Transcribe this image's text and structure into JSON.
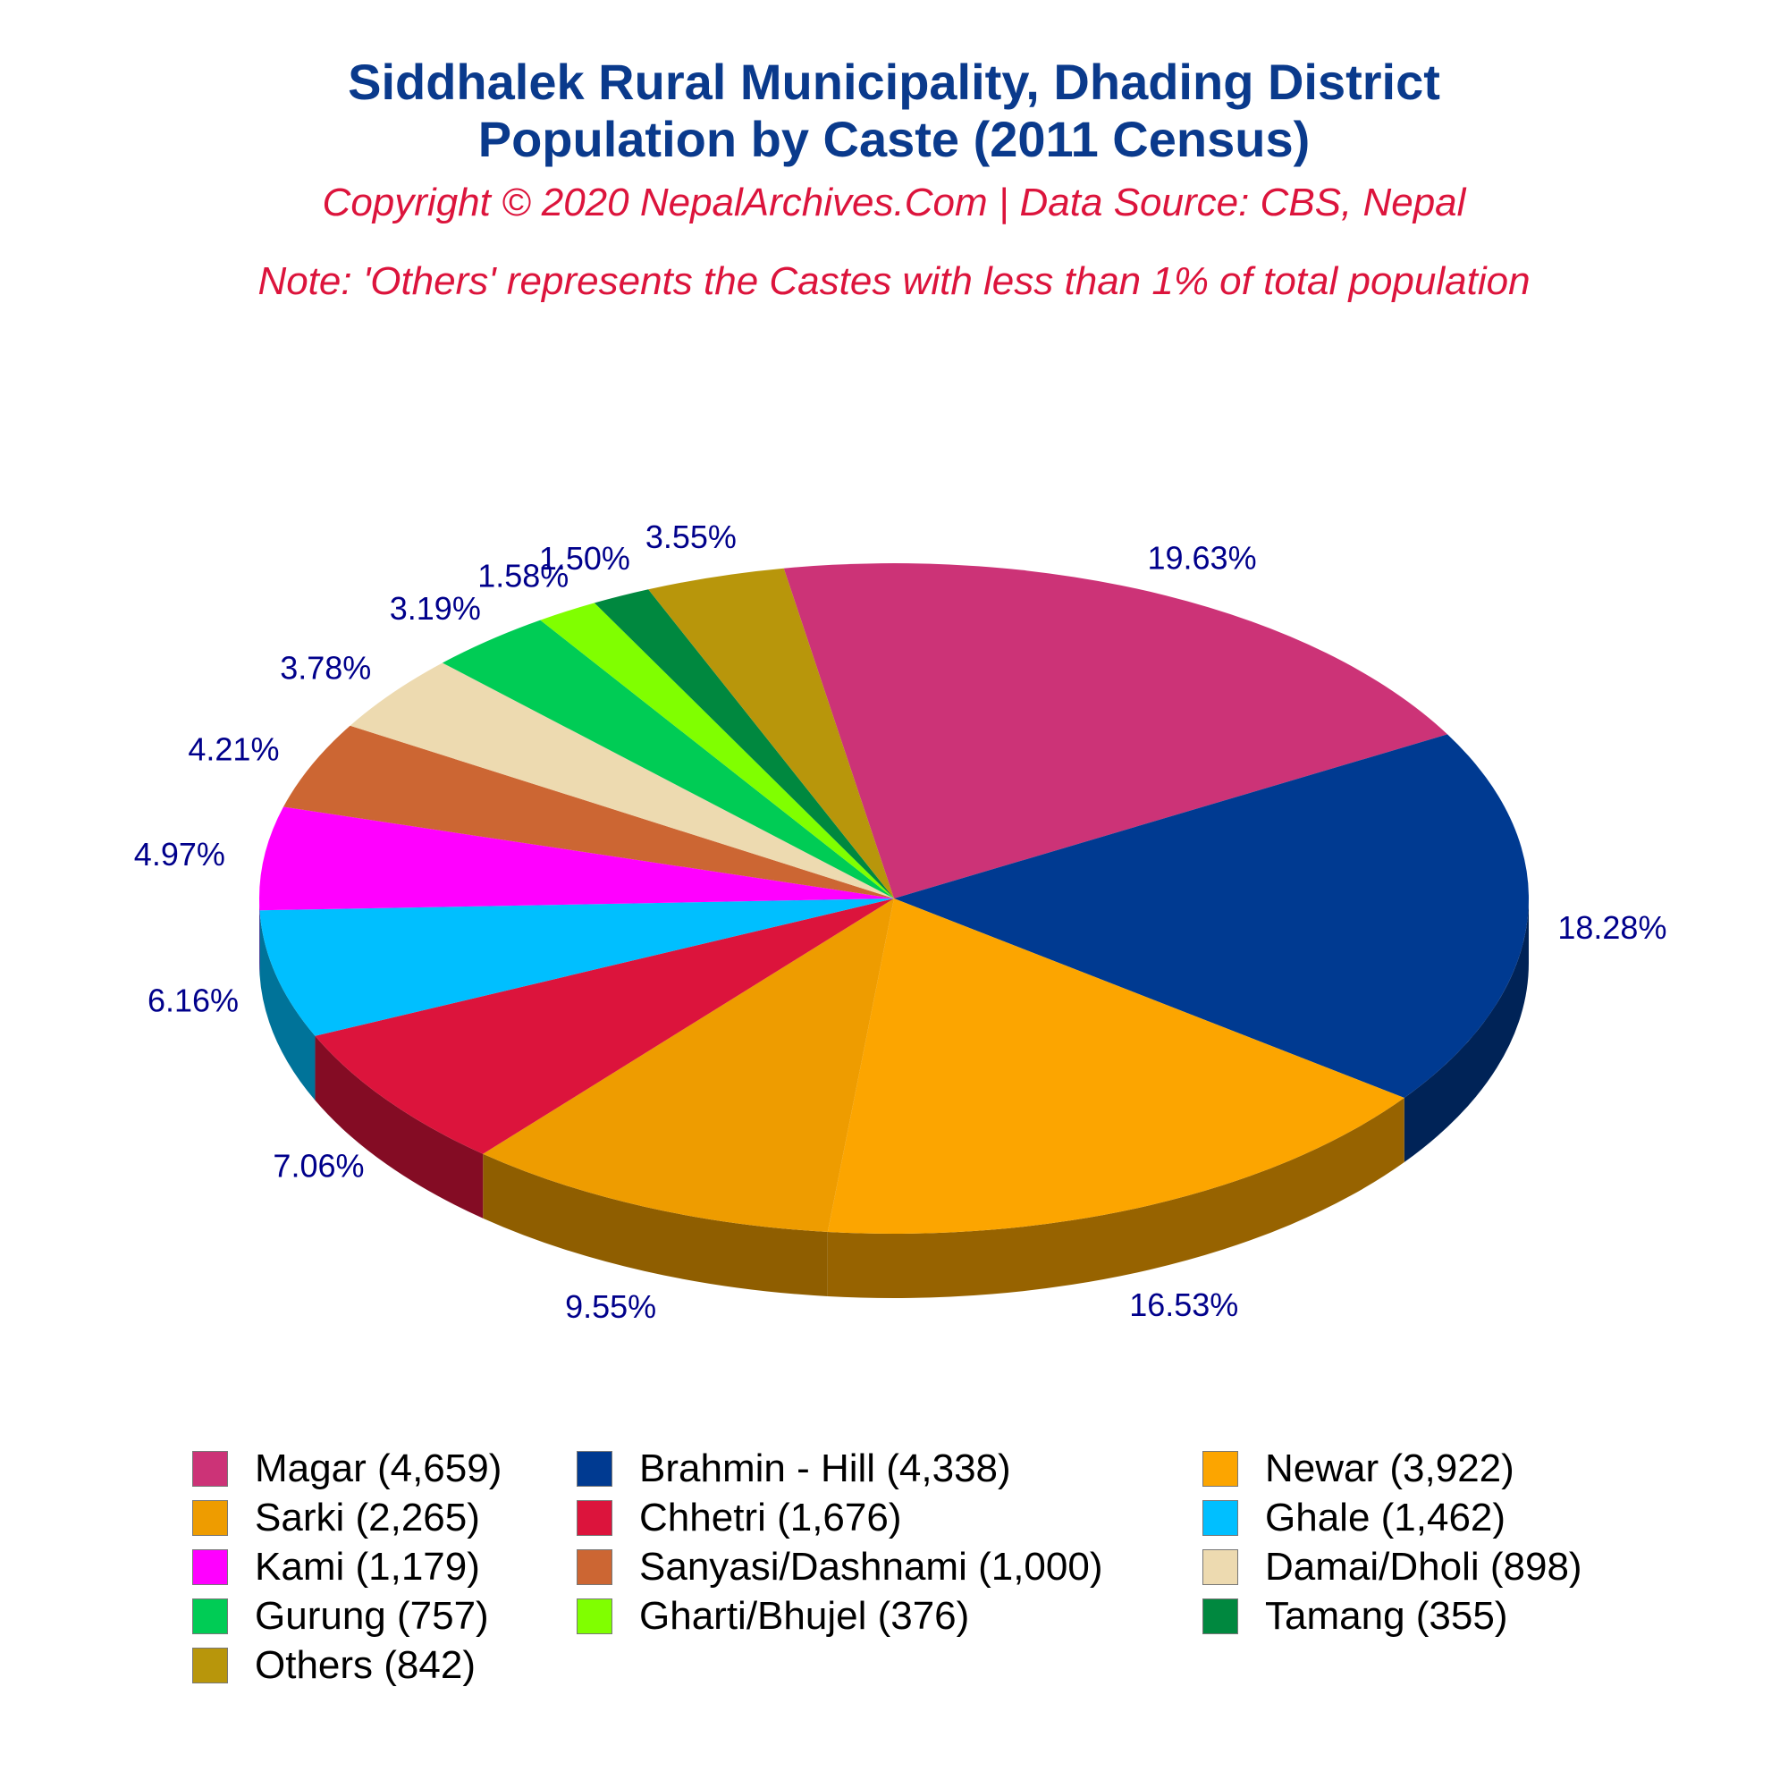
{
  "titles": {
    "line1": "Siddhalek Rural Municipality, Dhading District",
    "line2": "Population by Caste (2011 Census)",
    "copyright": "Copyright © 2020 NepalArchives.Com | Data Source: CBS, Nepal",
    "note": "Note: 'Others' represents the Castes with less than 1% of total population"
  },
  "chart_data": {
    "type": "pie",
    "style": "3d",
    "title": "Siddhalek Rural Municipality, Dhading District Population by Caste (2011 Census)",
    "legend_position": "bottom",
    "slices": [
      {
        "label": "Magar (4,659)",
        "value": 4659,
        "percent": "19.63%",
        "color": "#cc3377"
      },
      {
        "label": "Brahmin - Hill (4,338)",
        "value": 4338,
        "percent": "18.28%",
        "color": "#003a91"
      },
      {
        "label": "Newar (3,922)",
        "value": 3922,
        "percent": "16.53%",
        "color": "#fca500"
      },
      {
        "label": "Sarki (2,265)",
        "value": 2265,
        "percent": "9.55%",
        "color": "#ee9c00"
      },
      {
        "label": "Chhetri (1,676)",
        "value": 1676,
        "percent": "7.06%",
        "color": "#dc143c"
      },
      {
        "label": "Ghale (1,462)",
        "value": 1462,
        "percent": "6.16%",
        "color": "#00bfff"
      },
      {
        "label": "Kami (1,179)",
        "value": 1179,
        "percent": "4.97%",
        "color": "#ff00ff"
      },
      {
        "label": "Sanyasi/Dashnami (1,000)",
        "value": 1000,
        "percent": "4.21%",
        "color": "#cc6633"
      },
      {
        "label": "Damai/Dholi (898)",
        "value": 898,
        "percent": "3.78%",
        "color": "#eddab0"
      },
      {
        "label": "Gurung (757)",
        "value": 757,
        "percent": "3.19%",
        "color": "#00cc55"
      },
      {
        "label": "Gharti/Bhujel (376)",
        "value": 376,
        "percent": "1.58%",
        "color": "#80ff00"
      },
      {
        "label": "Tamang (355)",
        "value": 355,
        "percent": "1.50%",
        "color": "#00883f"
      },
      {
        "label": "Others (842)",
        "value": 842,
        "percent": "3.55%",
        "color": "#b8960b"
      }
    ]
  }
}
